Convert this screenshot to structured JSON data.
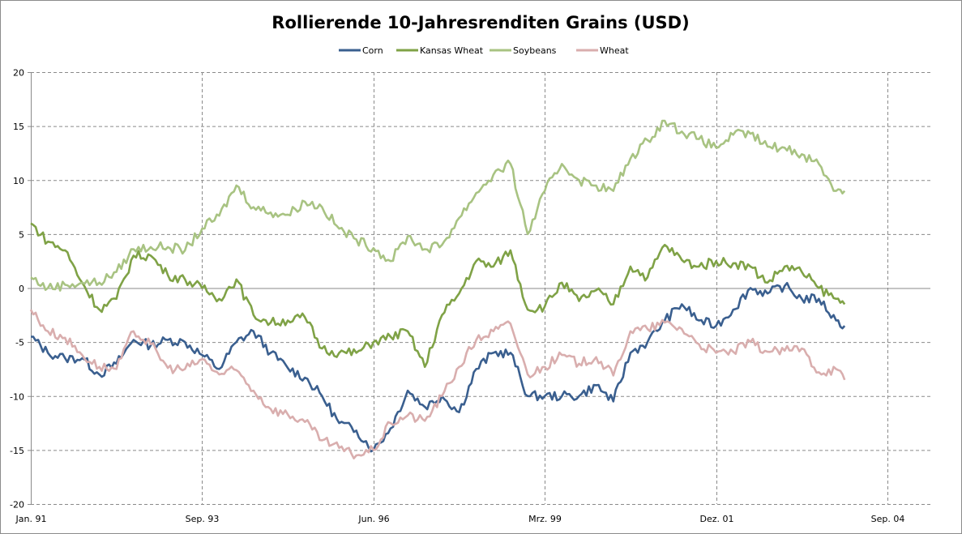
{
  "chart_data": {
    "type": "line",
    "title": "Rollierende 10-Jahresrenditen Grains (USD)",
    "xlabel": "",
    "ylabel": "",
    "x_unit": "days since Jan. 91",
    "xlim": [
      0,
      5250
    ],
    "ylim": [
      -20,
      20
    ],
    "grid": true,
    "legend_position": "top",
    "y_ticks": [
      20,
      15,
      10,
      5,
      0,
      -5,
      -10,
      -15,
      -20
    ],
    "y_tick_labels": [
      "20",
      "15",
      "10",
      "5",
      "0",
      "-5",
      "-10",
      "-15",
      "-20"
    ],
    "x_ticks": [
      0,
      1000,
      2000,
      3000,
      4000,
      5000
    ],
    "x_tick_labels": [
      "Jan. 91",
      "Sep. 93",
      "Jun. 96",
      "Mrz. 99",
      "Dez. 01",
      "Sep. 04"
    ],
    "x": [
      0,
      100,
      200,
      300,
      400,
      500,
      600,
      700,
      800,
      900,
      1000,
      1100,
      1200,
      1300,
      1400,
      1500,
      1600,
      1700,
      1800,
      1900,
      2000,
      2100,
      2200,
      2300,
      2400,
      2500,
      2600,
      2700,
      2800,
      2900,
      3000,
      3100,
      3200,
      3300,
      3400,
      3500,
      3600,
      3700,
      3800,
      3900,
      4000,
      4100,
      4200,
      4300,
      4400,
      4500,
      4600,
      4700,
      4750
    ],
    "series": [
      {
        "name": "Corn",
        "color": "#3a5f8f",
        "values": [
          -4.5,
          -6,
          -6.5,
          -6.5,
          -8,
          -7,
          -4.8,
          -5.3,
          -4.8,
          -5,
          -6.2,
          -7.5,
          -5,
          -4,
          -6,
          -7.4,
          -8.3,
          -10,
          -12.5,
          -13.2,
          -15,
          -13,
          -9.5,
          -11,
          -10,
          -11.5,
          -7.5,
          -6,
          -6,
          -10,
          -10,
          -10,
          -10,
          -9,
          -10.5,
          -6,
          -5,
          -3,
          -1.5,
          -3,
          -3.5,
          -2,
          0,
          -0.5,
          0.2,
          -1,
          -1,
          -3,
          -3.5
        ]
      },
      {
        "name": "Kansas Wheat",
        "color": "#7fa246",
        "values": [
          6,
          4.3,
          3.5,
          0.5,
          -2,
          -1,
          3,
          3,
          1.2,
          0.8,
          0,
          -1,
          0.8,
          -2.5,
          -3.2,
          -3,
          -2.7,
          -5.6,
          -6,
          -6,
          -5,
          -4.5,
          -4,
          -7.3,
          -2.5,
          -0.5,
          2.5,
          2,
          3.5,
          -2,
          -1.7,
          0.5,
          -1.2,
          -0.2,
          -1.5,
          2,
          1,
          4,
          2.6,
          2,
          2.5,
          2.3,
          2,
          0.5,
          2,
          1.5,
          0,
          -1,
          -1.5
        ]
      },
      {
        "name": "Soybeans",
        "color": "#a8c382",
        "values": [
          1,
          0,
          0.3,
          0.5,
          0.5,
          1.5,
          3.6,
          3.8,
          3.8,
          3.5,
          5.5,
          6.7,
          9.5,
          7.5,
          7,
          6.8,
          8,
          7.5,
          5.5,
          4.5,
          3.7,
          2.5,
          4.8,
          3.6,
          4,
          6.5,
          8.8,
          10.5,
          11.5,
          5,
          9,
          11.5,
          10,
          9.5,
          9,
          12,
          13.7,
          15.5,
          14.5,
          13.8,
          13,
          14.2,
          14.3,
          13.1,
          13,
          12.4,
          11.5,
          9,
          9
        ]
      },
      {
        "name": "Wheat",
        "color": "#d9aeae",
        "values": [
          -2,
          -4,
          -4.6,
          -6.2,
          -7.3,
          -7.5,
          -4,
          -5.2,
          -7.4,
          -7.5,
          -6.6,
          -8,
          -7.6,
          -9.5,
          -11.2,
          -11.7,
          -12.4,
          -14.1,
          -14.8,
          -15.5,
          -15,
          -12.5,
          -11.8,
          -12.3,
          -10,
          -7.3,
          -4.8,
          -4,
          -3.3,
          -8,
          -7.3,
          -6.2,
          -7,
          -6.4,
          -8.1,
          -4,
          -3.8,
          -3.2,
          -3.8,
          -5.2,
          -6,
          -5.9,
          -5,
          -5.9,
          -5.8,
          -5.6,
          -7.8,
          -7.5,
          -8.5
        ]
      }
    ]
  }
}
